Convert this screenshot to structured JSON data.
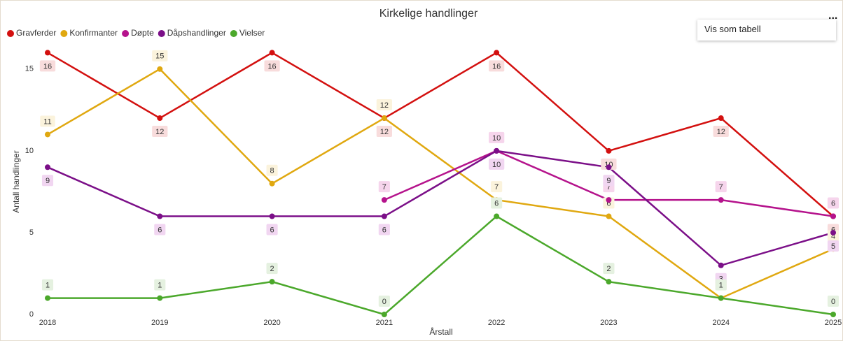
{
  "chart_data": {
    "type": "line",
    "title": "Kirkelige handlinger",
    "x_label": "Årstall",
    "y_label": "Antall handlinger",
    "categories": [
      "2018",
      "2019",
      "2020",
      "2021",
      "2022",
      "2023",
      "2024",
      "2025"
    ],
    "series": [
      {
        "name": "Gravferder",
        "color": "#d3100f",
        "label_bg": "#f8dcdc",
        "values": [
          16,
          12,
          16,
          12,
          16,
          10,
          12,
          6
        ]
      },
      {
        "name": "Konfirmanter",
        "color": "#e0a810",
        "label_bg": "#fbf3dc",
        "values": [
          11,
          15,
          8,
          12,
          7,
          6,
          1,
          4
        ]
      },
      {
        "name": "Døpte",
        "color": "#b5138c",
        "label_bg": "#f6d5ec",
        "values": [
          null,
          null,
          null,
          7,
          10,
          7,
          7,
          6
        ]
      },
      {
        "name": "Dåpshandlinger",
        "color": "#7b0f88",
        "label_bg": "#f1d6f1",
        "values": [
          9,
          6,
          6,
          6,
          10,
          9,
          3,
          5
        ]
      },
      {
        "name": "Vielser",
        "color": "#4ba82b",
        "label_bg": "#e5f1e0",
        "values": [
          1,
          1,
          2,
          0,
          6,
          2,
          1,
          0
        ]
      }
    ],
    "ylim": [
      0,
      17
    ],
    "yticks": [
      0,
      5,
      10,
      15
    ],
    "grid": false,
    "legend": "top-left"
  },
  "menu": {
    "more": "...",
    "items": [
      "Vis som tabell"
    ]
  }
}
